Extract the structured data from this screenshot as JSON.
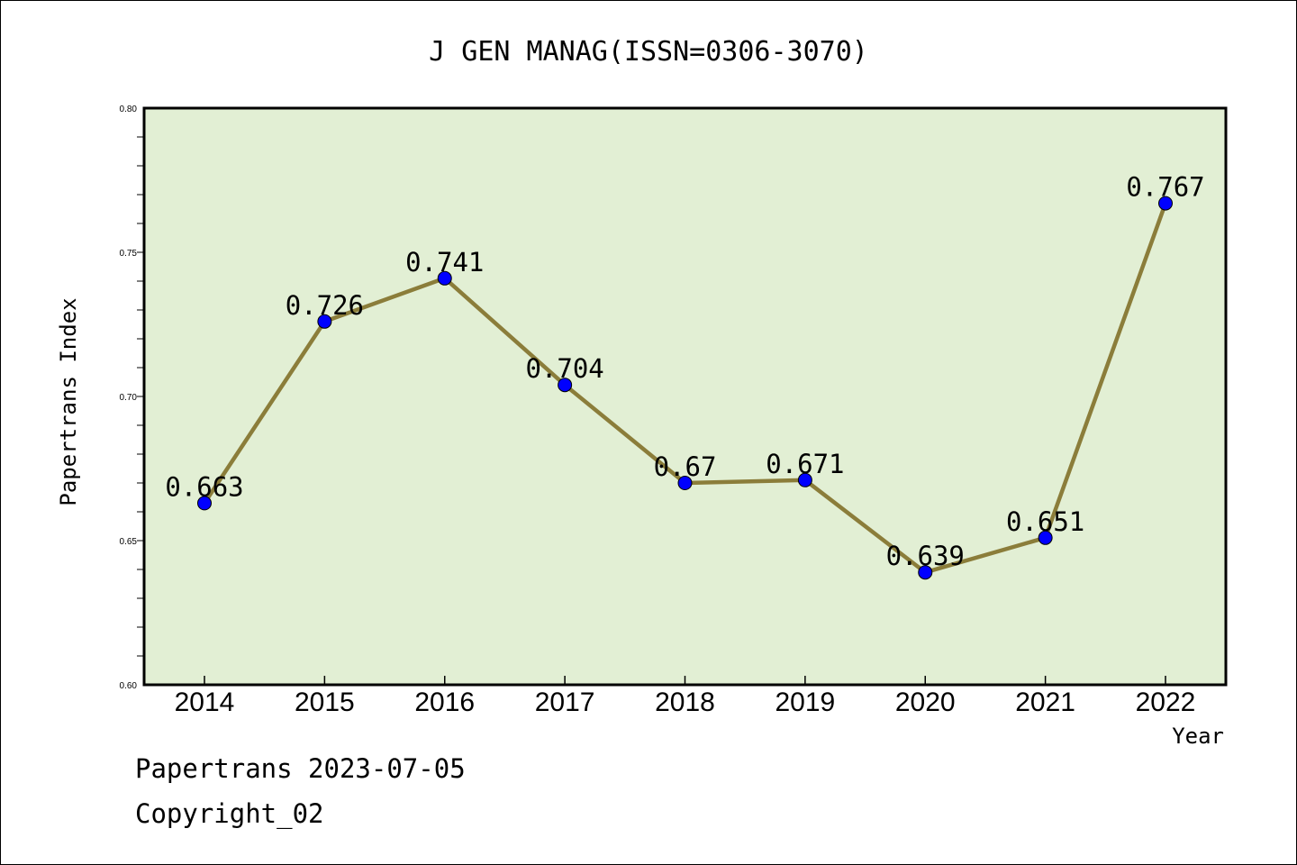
{
  "chart_data": {
    "type": "line",
    "title": "J GEN MANAG(ISSN=0306-3070)",
    "xlabel": "Year",
    "ylabel": "Papertrans Index",
    "categories": [
      "2014",
      "2015",
      "2016",
      "2017",
      "2018",
      "2019",
      "2020",
      "2021",
      "2022"
    ],
    "series": [
      {
        "values": [
          0.663,
          0.726,
          0.741,
          0.704,
          0.67,
          0.671,
          0.639,
          0.651,
          0.767
        ],
        "labels": [
          "0.663",
          "0.726",
          "0.741",
          "0.704",
          "0.67",
          "0.671",
          "0.639",
          "0.651",
          "0.767"
        ]
      }
    ],
    "ylim": [
      0.6,
      0.8
    ],
    "yticks": [
      "0.60",
      "0.65",
      "0.70",
      "0.75",
      "0.80"
    ],
    "grid": false,
    "legend": "none",
    "colors": {
      "line": "#8b7d3a",
      "marker": "#0000ff",
      "plot_background": "#e2efd4"
    }
  },
  "footer": {
    "line1": "Papertrans 2023-07-05",
    "line2": "Copyright_02"
  }
}
